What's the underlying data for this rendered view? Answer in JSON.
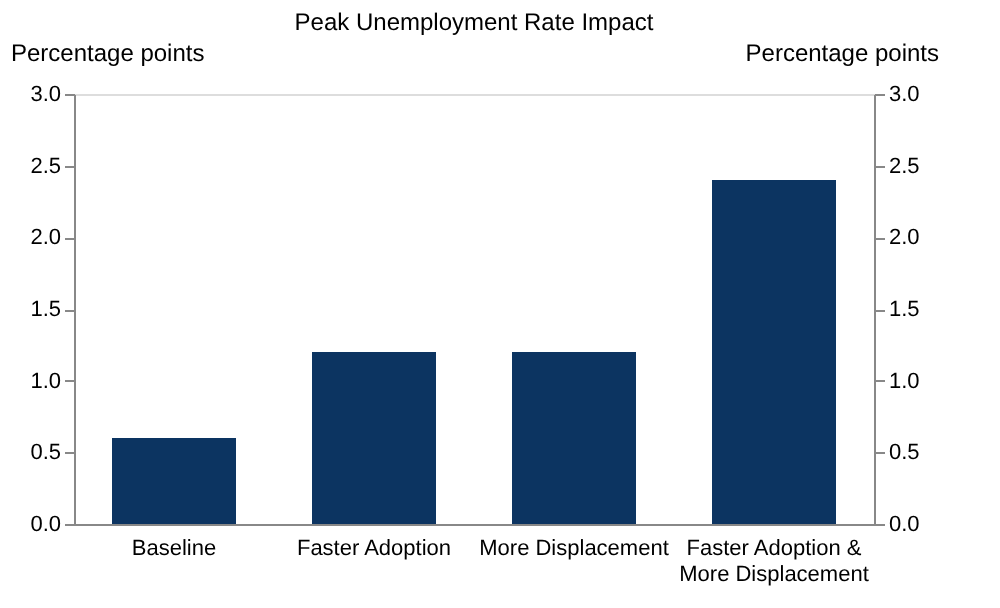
{
  "chart_data": {
    "type": "bar",
    "title": "Peak Unemployment Rate Impact",
    "ylabel": "Percentage points",
    "y2label": "Percentage points",
    "categories": [
      "Baseline",
      "Faster Adoption",
      "More Displacement",
      "Faster Adoption & More Displacement"
    ],
    "series": [
      {
        "color": "#0c3461",
        "values": [
          0.6,
          1.2,
          1.2,
          2.4
        ]
      }
    ],
    "ylim": [
      0,
      3
    ],
    "yticks": [
      {
        "value": 0,
        "label": "0.0"
      },
      0.5,
      {
        "value": 1,
        "label": "1.0"
      },
      1.5,
      {
        "value": 2,
        "label": "2.0"
      },
      2.5,
      {
        "value": 3,
        "label": "3.0"
      }
    ],
    "y2lim": [
      0,
      3
    ],
    "y2ticks": [
      {
        "value": 0,
        "label": "0.0"
      },
      0.5,
      {
        "value": 1,
        "label": "1.0"
      },
      1.5,
      {
        "value": 2,
        "label": "2.0"
      },
      2.5,
      {
        "value": 3,
        "label": "3.0"
      }
    ],
    "grid": false
  }
}
